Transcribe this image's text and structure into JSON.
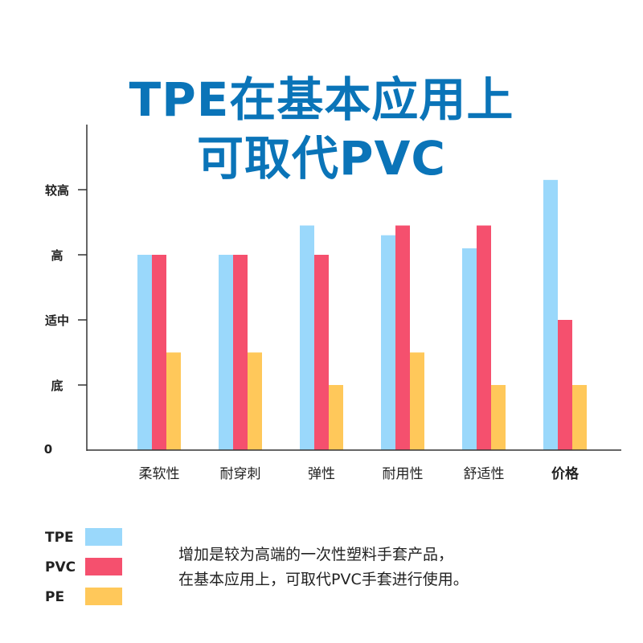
{
  "title": {
    "line1": "TPE在基本应用上",
    "line2": "可取代PVC"
  },
  "colors": {
    "title": "#0a74b8",
    "TPE": "#9ad8fb",
    "PVC": "#f5506e",
    "PE": "#ffc85a"
  },
  "chart_data": {
    "type": "bar",
    "categories": [
      "柔软性",
      "耐穿刺",
      "弹性",
      "耐用性",
      "舒适性",
      "价格"
    ],
    "y_tick_labels": [
      "0",
      "底",
      "适中",
      "高",
      "较高"
    ],
    "y_tick_values": [
      0,
      1,
      2,
      3,
      4
    ],
    "ylim": [
      0,
      5
    ],
    "series": [
      {
        "name": "TPE",
        "values": [
          3.0,
          3.0,
          3.45,
          3.3,
          3.1,
          4.15
        ]
      },
      {
        "name": "PVC",
        "values": [
          3.0,
          3.0,
          3.0,
          3.45,
          3.45,
          2.0
        ]
      },
      {
        "name": "PE",
        "values": [
          1.5,
          1.5,
          1.0,
          1.5,
          1.0,
          1.0
        ]
      }
    ],
    "xlabel": "",
    "ylabel": ""
  },
  "legend": [
    "TPE",
    "PVC",
    "PE"
  ],
  "note": {
    "line1": "增加是较为高端的一次性塑料手套产品，",
    "line2": "在基本应用上，可取代PVC手套进行使用。"
  }
}
